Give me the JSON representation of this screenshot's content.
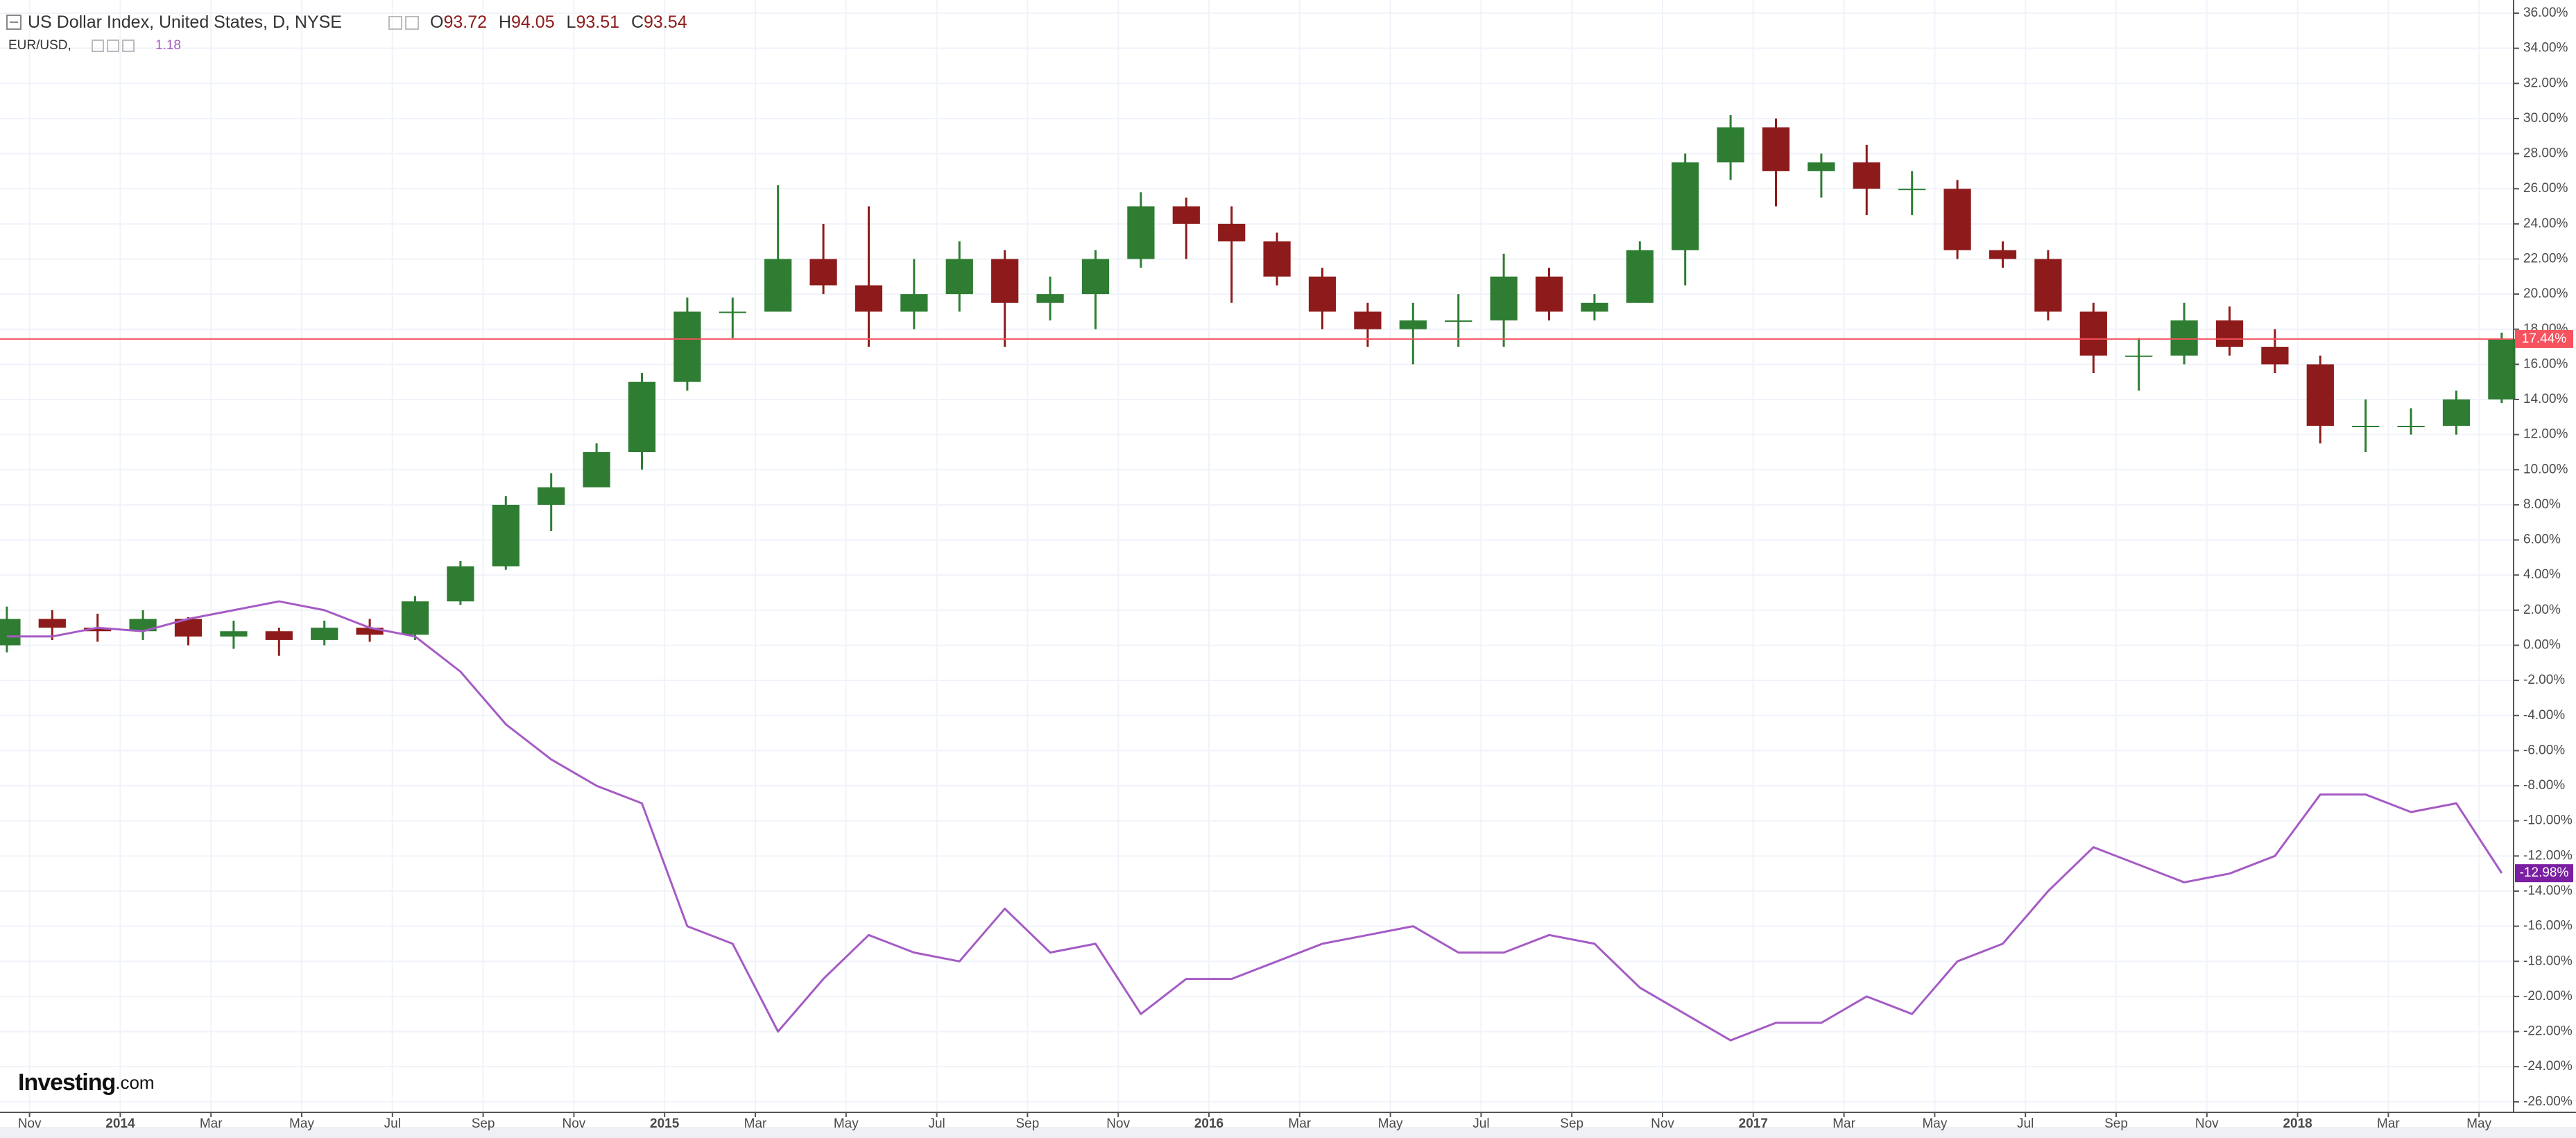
{
  "chart_data": {
    "type": "candlestick",
    "grid": true,
    "logo": {
      "brand": "Investing",
      "suffix": ".com"
    },
    "x": [
      "2013-10",
      "2013-11",
      "2013-12",
      "2014-01",
      "2014-02",
      "2014-03",
      "2014-04",
      "2014-05",
      "2014-06",
      "2014-07",
      "2014-08",
      "2014-09",
      "2014-10",
      "2014-11",
      "2014-12",
      "2015-01",
      "2015-02",
      "2015-03",
      "2015-04",
      "2015-05",
      "2015-06",
      "2015-07",
      "2015-08",
      "2015-09",
      "2015-10",
      "2015-11",
      "2015-12",
      "2016-01",
      "2016-02",
      "2016-03",
      "2016-04",
      "2016-05",
      "2016-06",
      "2016-07",
      "2016-08",
      "2016-09",
      "2016-10",
      "2016-11",
      "2016-12",
      "2017-01",
      "2017-02",
      "2017-03",
      "2017-04",
      "2017-05",
      "2017-06",
      "2017-07",
      "2017-08",
      "2017-09",
      "2017-10",
      "2017-11",
      "2017-12",
      "2018-01",
      "2018-02",
      "2018-03",
      "2018-04",
      "2018-05"
    ],
    "xticks": [
      {
        "value": "2013-11",
        "label": "Nov"
      },
      {
        "value": "2014-01",
        "label": "2014"
      },
      {
        "value": "2014-03",
        "label": "Mar"
      },
      {
        "value": "2014-05",
        "label": "May"
      },
      {
        "value": "2014-07",
        "label": "Jul"
      },
      {
        "value": "2014-09",
        "label": "Sep"
      },
      {
        "value": "2014-11",
        "label": "Nov"
      },
      {
        "value": "2015-01",
        "label": "2015"
      },
      {
        "value": "2015-03",
        "label": "Mar"
      },
      {
        "value": "2015-05",
        "label": "May"
      },
      {
        "value": "2015-07",
        "label": "Jul"
      },
      {
        "value": "2015-09",
        "label": "Sep"
      },
      {
        "value": "2015-11",
        "label": "Nov"
      },
      {
        "value": "2016-01",
        "label": "2016"
      },
      {
        "value": "2016-03",
        "label": "Mar"
      },
      {
        "value": "2016-05",
        "label": "May"
      },
      {
        "value": "2016-07",
        "label": "Jul"
      },
      {
        "value": "2016-09",
        "label": "Sep"
      },
      {
        "value": "2016-11",
        "label": "Nov"
      },
      {
        "value": "2017-01",
        "label": "2017"
      },
      {
        "value": "2017-03",
        "label": "Mar"
      },
      {
        "value": "2017-05",
        "label": "May"
      },
      {
        "value": "2017-07",
        "label": "Jul"
      },
      {
        "value": "2017-09",
        "label": "Sep"
      },
      {
        "value": "2017-11",
        "label": "Nov"
      },
      {
        "value": "2018-01",
        "label": "2018"
      },
      {
        "value": "2018-03",
        "label": "Mar"
      },
      {
        "value": "2018-05",
        "label": "May"
      }
    ],
    "ylim": [
      -26.6,
      36.75
    ],
    "yticks": [
      {
        "value": 36,
        "label": "36.00%"
      },
      {
        "value": 34,
        "label": "34.00%"
      },
      {
        "value": 32,
        "label": "32.00%"
      },
      {
        "value": 30,
        "label": "30.00%"
      },
      {
        "value": 28,
        "label": "28.00%"
      },
      {
        "value": 26,
        "label": "26.00%"
      },
      {
        "value": 24,
        "label": "24.00%"
      },
      {
        "value": 22,
        "label": "22.00%"
      },
      {
        "value": 20,
        "label": "20.00%"
      },
      {
        "value": 18,
        "label": "18.00%"
      },
      {
        "value": 16,
        "label": "16.00%"
      },
      {
        "value": 14,
        "label": "14.00%"
      },
      {
        "value": 12,
        "label": "12.00%"
      },
      {
        "value": 10,
        "label": "10.00%"
      },
      {
        "value": 8,
        "label": "8.00%"
      },
      {
        "value": 6,
        "label": "6.00%"
      },
      {
        "value": 4,
        "label": "4.00%"
      },
      {
        "value": 2,
        "label": "2.00%"
      },
      {
        "value": 0,
        "label": "0.00%"
      },
      {
        "value": -2,
        "label": "-2.00%"
      },
      {
        "value": -4,
        "label": "-4.00%"
      },
      {
        "value": -6,
        "label": "-6.00%"
      },
      {
        "value": -8,
        "label": "-8.00%"
      },
      {
        "value": -10,
        "label": "-10.00%"
      },
      {
        "value": -12,
        "label": "-12.00%"
      },
      {
        "value": -14,
        "label": "-14.00%"
      },
      {
        "value": -16,
        "label": "-16.00%"
      },
      {
        "value": -18,
        "label": "-18.00%"
      },
      {
        "value": -20,
        "label": "-20.00%"
      },
      {
        "value": -22,
        "label": "-22.00%"
      },
      {
        "value": -24,
        "label": "-24.00%"
      },
      {
        "value": -26,
        "label": "-26.00%"
      }
    ],
    "series": [
      {
        "name": "US Dollar Index, United States, D, NYSE",
        "type": "candlestick",
        "color_up": "#2e7d32",
        "color_down": "#8e1b1b",
        "price_line_color": "#f7525f",
        "header": [
          {
            "key": "O",
            "value": 93.72
          },
          {
            "key": "H",
            "value": 94.05
          },
          {
            "key": "L",
            "value": 93.51
          },
          {
            "key": "C",
            "value": 93.54
          }
        ],
        "open": [
          0,
          1.5,
          1.0,
          0.8,
          1.5,
          0.5,
          0.8,
          0.3,
          1.0,
          0.6,
          2.5,
          4.5,
          8.0,
          9.0,
          11.0,
          15.0,
          19.0,
          19.0,
          22.0,
          20.5,
          19.0,
          20.0,
          22.0,
          19.5,
          20.0,
          22.0,
          25.0,
          24.0,
          23.0,
          21.0,
          19.0,
          18.0,
          18.5,
          18.5,
          21.0,
          19.0,
          19.5,
          22.5,
          27.5,
          29.5,
          27.0,
          27.5,
          26.0,
          26.0,
          22.5,
          22.0,
          19.0,
          16.5,
          16.5,
          18.5,
          17.0,
          16.0,
          12.5,
          12.5,
          12.5,
          14.0
        ],
        "high": [
          2.2,
          2.0,
          1.8,
          2.0,
          1.6,
          1.4,
          1.0,
          1.4,
          1.5,
          2.8,
          4.8,
          8.5,
          9.8,
          11.5,
          15.5,
          19.8,
          19.8,
          26.2,
          24.0,
          25.0,
          22.0,
          23.0,
          22.5,
          21.0,
          22.5,
          25.8,
          25.5,
          25.0,
          23.5,
          21.5,
          19.5,
          19.5,
          20.0,
          22.3,
          21.5,
          20.0,
          23.0,
          28.0,
          30.2,
          30.0,
          28.0,
          28.5,
          27.0,
          26.5,
          23.0,
          22.5,
          19.5,
          17.5,
          19.5,
          19.3,
          18.0,
          16.5,
          14.0,
          13.5,
          14.5,
          17.8
        ],
        "low": [
          -0.4,
          0.3,
          0.2,
          0.3,
          0.0,
          -0.2,
          -0.6,
          0.0,
          0.2,
          0.3,
          2.3,
          4.3,
          6.5,
          9.0,
          10.0,
          14.5,
          17.5,
          19.0,
          20.0,
          17.0,
          18.0,
          19.0,
          17.0,
          18.5,
          18.0,
          21.5,
          22.0,
          19.5,
          20.5,
          18.0,
          17.0,
          16.0,
          17.0,
          17.0,
          18.5,
          18.5,
          19.5,
          20.5,
          26.5,
          25.0,
          25.5,
          24.5,
          24.5,
          22.0,
          21.5,
          18.5,
          15.5,
          14.5,
          16.0,
          16.5,
          15.5,
          11.5,
          11.0,
          12.0,
          12.0,
          13.8
        ],
        "close": [
          1.5,
          1.0,
          0.8,
          1.5,
          0.5,
          0.8,
          0.3,
          1.0,
          0.6,
          2.5,
          4.5,
          8.0,
          9.0,
          11.0,
          15.0,
          19.0,
          19.0,
          22.0,
          20.5,
          19.0,
          20.0,
          22.0,
          19.5,
          20.0,
          22.0,
          25.0,
          24.0,
          23.0,
          21.0,
          19.0,
          18.0,
          18.5,
          18.5,
          21.0,
          19.0,
          19.5,
          22.5,
          27.5,
          29.5,
          27.0,
          27.5,
          26.0,
          26.0,
          22.5,
          22.0,
          19.0,
          16.5,
          16.5,
          18.5,
          17.0,
          16.0,
          12.5,
          12.5,
          12.5,
          14.0,
          17.44
        ],
        "last_label": "17.44%"
      },
      {
        "name": "EUR/USD,",
        "type": "line",
        "color": "#a55bc4",
        "badge_color": "#7b1fa2",
        "header_value": 1.18,
        "values": [
          0.5,
          0.5,
          1.0,
          0.8,
          1.5,
          2.0,
          2.5,
          2.0,
          1.0,
          0.5,
          -1.5,
          -4.5,
          -6.5,
          -8.0,
          -9.0,
          -16.0,
          -17.0,
          -22.0,
          -19.0,
          -16.5,
          -17.5,
          -18.0,
          -15.0,
          -17.5,
          -17.0,
          -21.0,
          -19.0,
          -19.0,
          -18.0,
          -17.0,
          -16.5,
          -16.0,
          -17.5,
          -17.5,
          -16.5,
          -17.0,
          -19.5,
          -21.0,
          -22.5,
          -21.5,
          -21.5,
          -20.0,
          -21.0,
          -18.0,
          -17.0,
          -14.0,
          -11.5,
          -12.5,
          -13.5,
          -13.0,
          -12.0,
          -8.5,
          -8.5,
          -9.5,
          -9.0,
          -12.98
        ],
        "last_label": "-12.98%"
      }
    ]
  }
}
